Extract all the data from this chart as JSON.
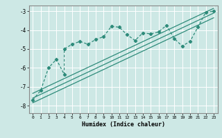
{
  "xlabel": "Humidex (Indice chaleur)",
  "ylabel": "",
  "xlim": [
    -0.5,
    23.5
  ],
  "ylim": [
    -8.4,
    -2.7
  ],
  "yticks": [
    -8,
    -7,
    -6,
    -5,
    -4,
    -3
  ],
  "xticks": [
    0,
    1,
    2,
    3,
    4,
    5,
    6,
    7,
    8,
    9,
    10,
    11,
    12,
    13,
    14,
    15,
    16,
    17,
    18,
    19,
    20,
    21,
    22,
    23
  ],
  "bg_color": "#cde8e5",
  "grid_color": "#ffffff",
  "line_color": "#2e8b7a",
  "line1_x": [
    0,
    1,
    2,
    3,
    4,
    4,
    5,
    6,
    7,
    8,
    9,
    10,
    11,
    12,
    13,
    14,
    15,
    16,
    17,
    18,
    19,
    20,
    21,
    22,
    23
  ],
  "line1_y": [
    -7.7,
    -7.2,
    -6.0,
    -5.55,
    -6.35,
    -5.0,
    -4.75,
    -4.6,
    -4.75,
    -4.5,
    -4.35,
    -3.8,
    -3.85,
    -4.25,
    -4.55,
    -4.15,
    -4.2,
    -4.1,
    -3.75,
    -4.45,
    -4.85,
    -4.6,
    -3.85,
    -3.05,
    -3.0
  ],
  "line2_x": [
    0,
    23
  ],
  "line2_y": [
    -7.6,
    -3.1
  ],
  "line3_x": [
    0,
    23
  ],
  "line3_y": [
    -7.85,
    -3.35
  ],
  "line4_x": [
    0,
    23
  ],
  "line4_y": [
    -7.35,
    -2.85
  ]
}
